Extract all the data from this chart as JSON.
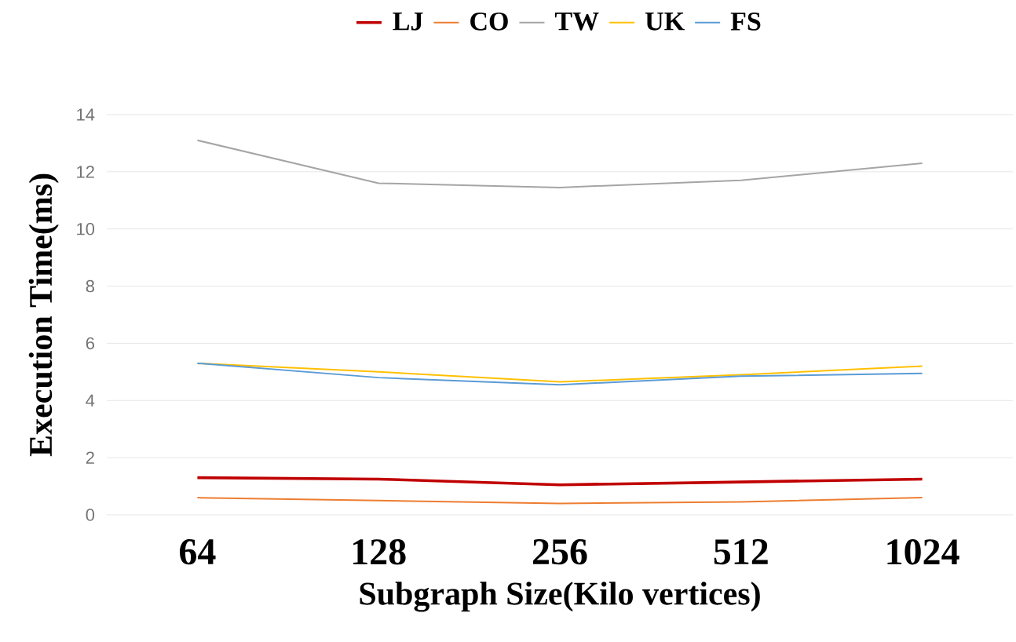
{
  "chart_data": {
    "type": "line",
    "xlabel": "Subgraph Size(Kilo vertices)",
    "ylabel": "Execution Time(ms)",
    "categories": [
      "64",
      "128",
      "256",
      "512",
      "1024"
    ],
    "series": [
      {
        "name": "LJ",
        "color": "#c00000",
        "values": [
          1.3,
          1.25,
          1.05,
          1.15,
          1.25
        ]
      },
      {
        "name": "CO",
        "color": "#ed7d31",
        "values": [
          0.6,
          0.5,
          0.4,
          0.45,
          0.6
        ]
      },
      {
        "name": "TW",
        "color": "#a5a5a5",
        "values": [
          13.1,
          11.6,
          11.45,
          11.7,
          12.3
        ]
      },
      {
        "name": "UK",
        "color": "#ffc000",
        "values": [
          5.3,
          5.0,
          4.65,
          4.9,
          5.2
        ]
      },
      {
        "name": "FS",
        "color": "#5b9bd5",
        "values": [
          5.3,
          4.8,
          4.55,
          4.85,
          4.95
        ]
      }
    ],
    "ylim": [
      0,
      14
    ],
    "yticks": [
      0,
      2,
      4,
      6,
      8,
      10,
      12,
      14
    ],
    "grid": "y",
    "legend": "top",
    "marker": "none",
    "line_style": "solid"
  }
}
